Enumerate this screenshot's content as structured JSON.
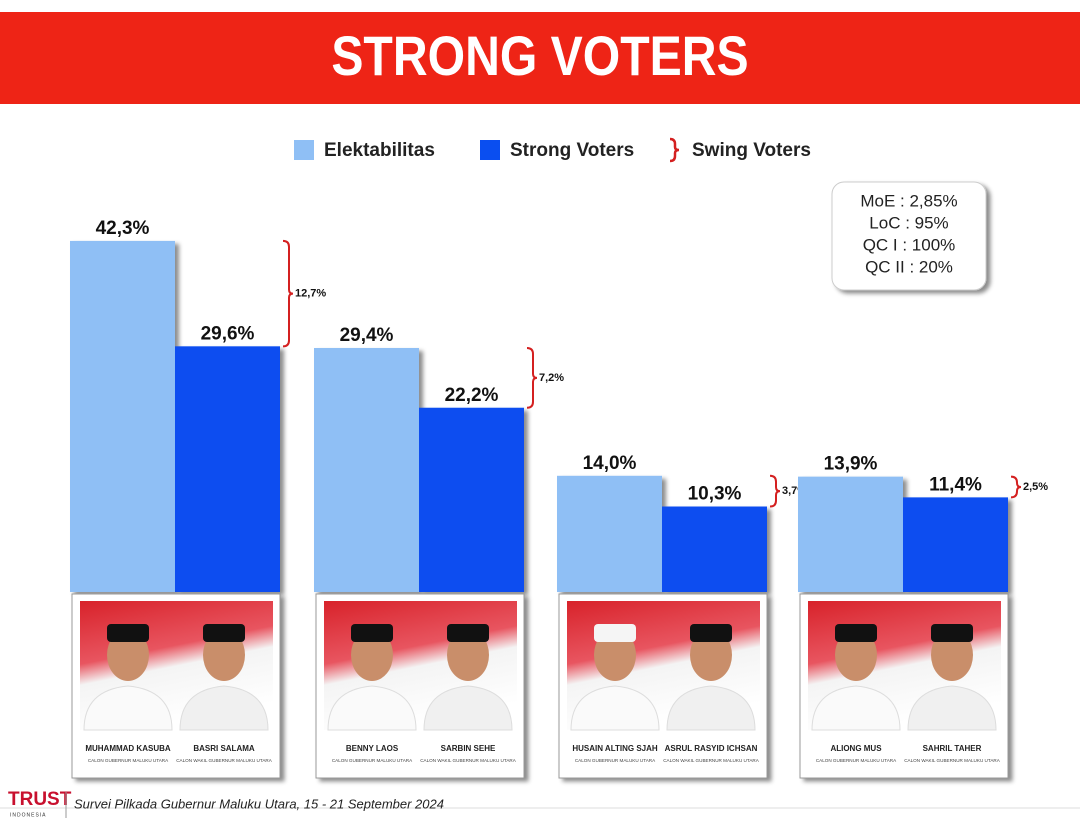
{
  "chart_data": {
    "type": "bar",
    "title": "STRONG VOTERS",
    "series": [
      {
        "name": "Elektabilitas",
        "color": "#8fbff5",
        "values": [
          42.3,
          29.4,
          14.0,
          13.9
        ],
        "value_labels": [
          "42,3%",
          "29,4%",
          "14,0%",
          "13,9%"
        ]
      },
      {
        "name": "Strong Voters",
        "color": "#0a4ef0",
        "values": [
          29.6,
          22.2,
          10.3,
          11.4
        ],
        "value_labels": [
          "29,6%",
          "22,2%",
          "10,3%",
          "11,4%"
        ]
      },
      {
        "name": "Swing Voters",
        "color": "#d42020",
        "values": [
          12.7,
          7.2,
          3.7,
          2.5
        ],
        "value_labels": [
          "12,7%",
          "7,2%",
          "3,7%",
          "2,5%"
        ]
      }
    ],
    "candidates": [
      {
        "gubernur": "MUHAMMAD KASUBA",
        "gubernur_role": "CALON GUBERNUR MALUKU UTARA",
        "wakil": "BASRI SALAMA",
        "wakil_role": "CALON WAKIL GUBERNUR MALUKU UTARA"
      },
      {
        "gubernur": "BENNY LAOS",
        "gubernur_role": "CALON GUBERNUR MALUKU UTARA",
        "wakil": "SARBIN SEHE",
        "wakil_role": "CALON WAKIL GUBERNUR MALUKU UTARA"
      },
      {
        "gubernur": "HUSAIN ALTING SJAH",
        "gubernur_role": "CALON GUBERNUR MALUKU UTARA",
        "wakil": "ASRUL RASYID ICHSAN",
        "wakil_role": "CALON WAKIL GUBERNUR MALUKU UTARA"
      },
      {
        "gubernur": "ALIONG MUS",
        "gubernur_role": "CALON GUBERNUR MALUKU UTARA",
        "wakil": "SAHRIL TAHER",
        "wakil_role": "CALON WAKIL GUBERNUR MALUKU UTARA"
      }
    ],
    "notes": [
      "MoE : 2,85%",
      "LoC : 95%",
      "QC I : 100%",
      "QC II : 20%"
    ]
  },
  "footer": {
    "logo": "TRUST",
    "logo_sub": "INDONESIA",
    "text": "Survei Pilkada Gubernur Maluku Utara, 15 - 21 September 2024"
  }
}
